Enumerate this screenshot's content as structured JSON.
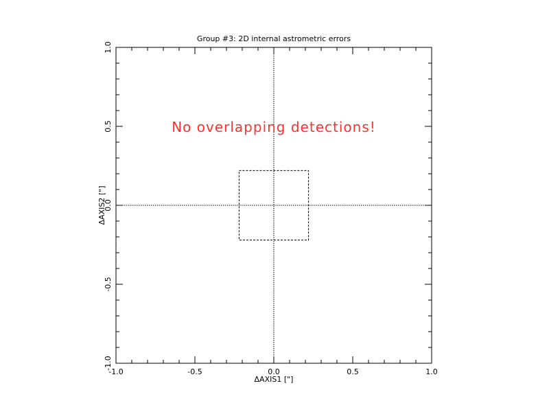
{
  "chart_data": {
    "type": "scatter",
    "title": "Group #3: 2D internal astrometric errors",
    "xlabel": "ΔAXIS1 [\"]",
    "ylabel": "ΔAXIS2 [\"]",
    "xlim": [
      -1.0,
      1.0
    ],
    "ylim": [
      -1.0,
      1.0
    ],
    "x_ticks": [
      "-1.0",
      "-0.5",
      "0.0",
      "0.5",
      "1.0"
    ],
    "y_ticks": [
      "-1.0",
      "-0.5",
      "0.0",
      "0.5",
      "1.0"
    ],
    "x_tick_values": [
      -1.0,
      -0.5,
      0.0,
      0.5,
      1.0
    ],
    "y_tick_values": [
      -1.0,
      -0.5,
      0.0,
      0.5,
      1.0
    ],
    "grid": false,
    "zero_lines": true,
    "box": {
      "x": [
        -0.22,
        0.22
      ],
      "y": [
        -0.22,
        0.22
      ]
    },
    "annotation": "No overlapping detections!",
    "annotation_color": "#ff3030",
    "series": []
  }
}
